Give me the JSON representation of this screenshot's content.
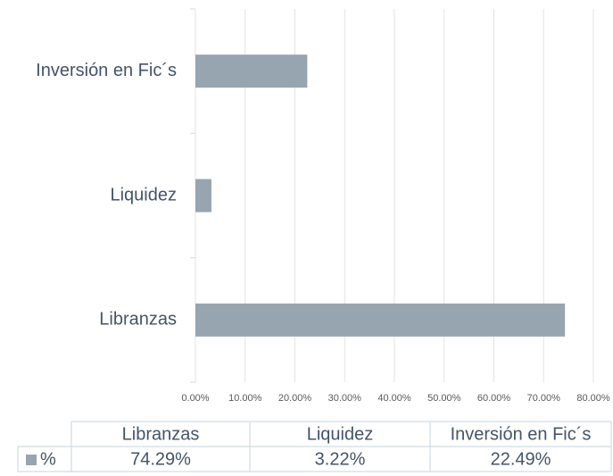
{
  "chart_data": {
    "type": "bar",
    "orientation": "horizontal",
    "categories": [
      "Libranzas",
      "Liquidez",
      "Inversión en Fic´s"
    ],
    "series": [
      {
        "name": "%",
        "color": "#96a5b0",
        "values": [
          74.29,
          3.22,
          22.49
        ],
        "value_labels": [
          "74.29%",
          "3.22%",
          "22.49%"
        ]
      }
    ],
    "xlim": [
      0,
      80
    ],
    "xticks": [
      {
        "value": 0,
        "label": "0.00%"
      },
      {
        "value": 10,
        "label": "10.00%"
      },
      {
        "value": 20,
        "label": "20.00%"
      },
      {
        "value": 30,
        "label": "30.00%"
      },
      {
        "value": 40,
        "label": "40.00%"
      },
      {
        "value": 50,
        "label": "50.00%"
      },
      {
        "value": 60,
        "label": "60.00%"
      },
      {
        "value": 70,
        "label": "70.00%"
      },
      {
        "value": 80,
        "label": "80.00%"
      }
    ],
    "grid": true,
    "data_table": true
  }
}
